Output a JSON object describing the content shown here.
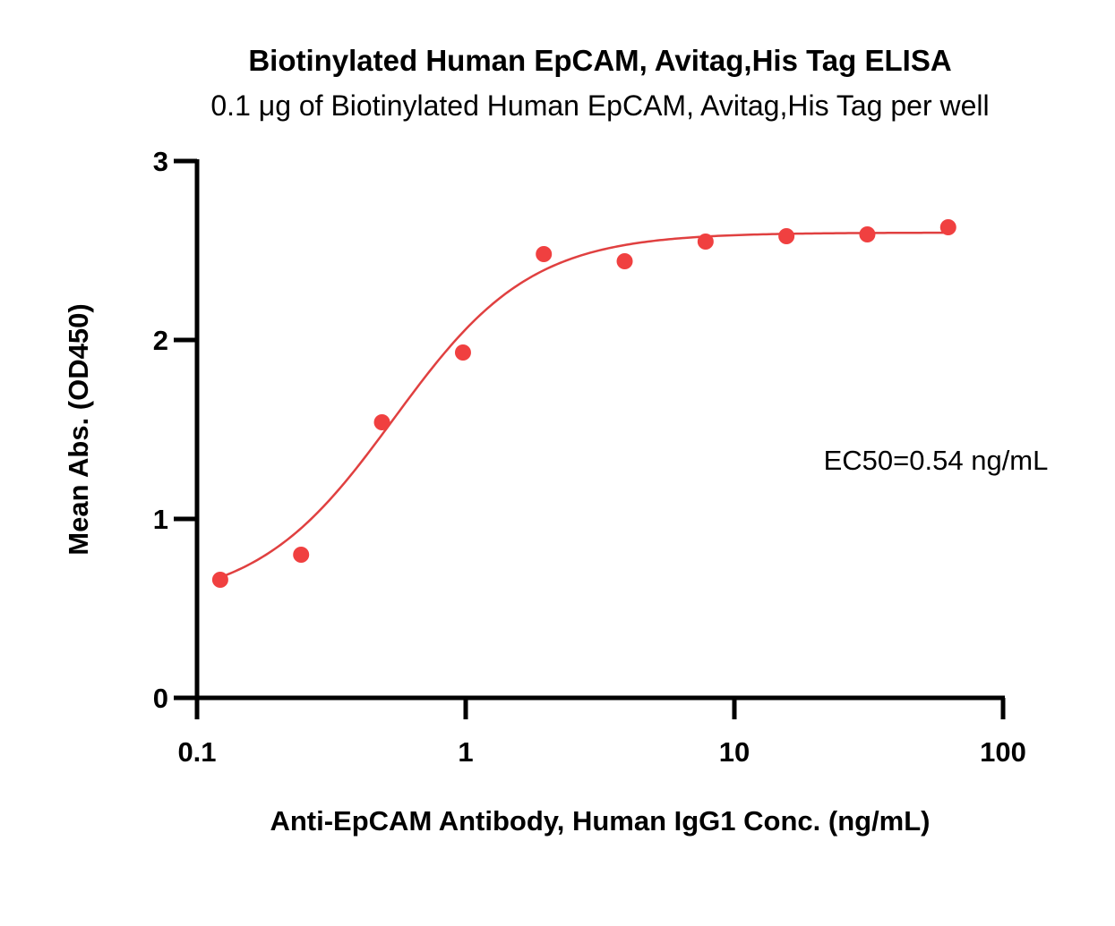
{
  "chart_data": {
    "type": "scatter",
    "title": "Biotinylated Human EpCAM, Avitag,His Tag ELISA",
    "subtitle": "0.1 μg of Biotinylated Human EpCAM, Avitag,His Tag per well",
    "xlabel": "Anti-EpCAM Antibody, Human IgG1 Conc. (ng/mL)",
    "ylabel": "Mean Abs. (OD450)",
    "x_scale": "log",
    "xlim": [
      0.1,
      100
    ],
    "ylim": [
      0,
      3
    ],
    "x_ticks": [
      0.1,
      1,
      10,
      100
    ],
    "x_tick_labels": [
      "0.1",
      "1",
      "10",
      "100"
    ],
    "y_ticks": [
      0,
      1,
      2,
      3
    ],
    "y_tick_labels": [
      "0",
      "1",
      "2",
      "3"
    ],
    "grid": false,
    "legend": "none",
    "series": [
      {
        "x": [
          0.122,
          0.244,
          0.488,
          0.977,
          1.953,
          3.906,
          7.813,
          15.625,
          31.25,
          62.5
        ],
        "y": [
          0.66,
          0.8,
          1.54,
          1.93,
          2.48,
          2.44,
          2.55,
          2.58,
          2.59,
          2.63
        ],
        "color": "#f04040"
      }
    ],
    "fit_curve": {
      "model": "4PL",
      "bottom": 0.52,
      "top": 2.6,
      "ec50": 0.54,
      "hill": 1.7,
      "color": "#e04040"
    },
    "annotation": "EC50=0.54 ng/mL"
  }
}
